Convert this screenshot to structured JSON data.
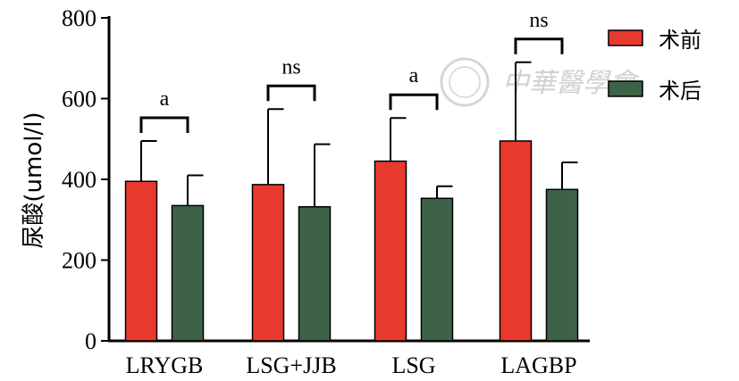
{
  "chart_data": {
    "type": "bar",
    "ylabel": "尿酸(umol/l)",
    "ylim": [
      0,
      800
    ],
    "yticks": [
      0,
      200,
      400,
      600,
      800
    ],
    "categories": [
      "LRYGB",
      "LSG+JJB",
      "LSG",
      "LAGBP"
    ],
    "series": [
      {
        "name": "术前",
        "color": "#e8392f",
        "values": [
          395,
          387,
          445,
          495
        ],
        "errors": [
          100,
          187,
          107,
          195
        ]
      },
      {
        "name": "术后",
        "color": "#3e6248",
        "values": [
          335,
          332,
          353,
          375
        ],
        "errors": [
          75,
          155,
          30,
          67
        ]
      }
    ],
    "significance": [
      "a",
      "ns",
      "a",
      "ns"
    ],
    "legend_position": "top-right",
    "watermark": "中華醫學會"
  }
}
